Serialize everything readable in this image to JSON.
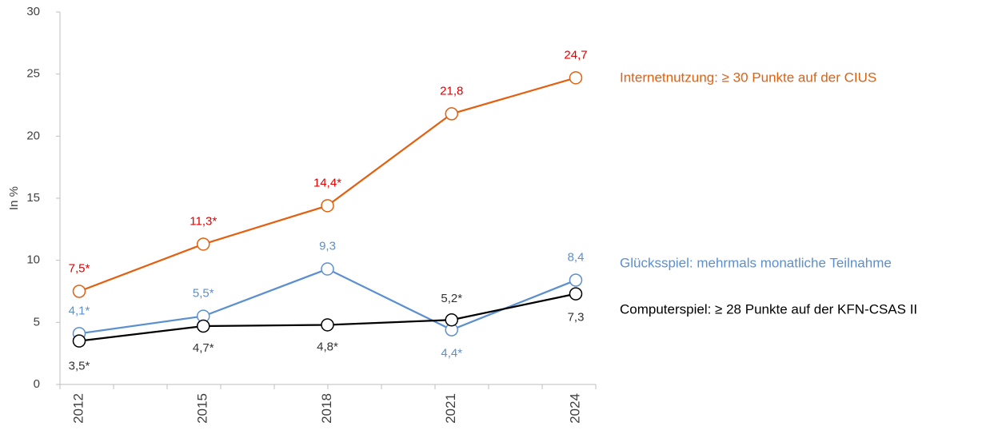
{
  "chart_data": {
    "type": "line",
    "y_label": "In %",
    "categories": [
      "2012",
      "2015",
      "2018",
      "2021",
      "2024"
    ],
    "ylim": [
      0,
      30
    ],
    "yticks": [
      0,
      5,
      10,
      15,
      20,
      25,
      30
    ],
    "grid": false,
    "series": [
      {
        "name": "Internetnutzung: ≥ 30 Punkte auf der CIUS",
        "color": "#e2600f",
        "label_color": "#e00000",
        "values": [
          7.5,
          11.3,
          14.4,
          21.8,
          24.7
        ],
        "value_labels": [
          "7,5*",
          "11,3*",
          "14,4*",
          "21,8",
          "24,7"
        ]
      },
      {
        "name": "Glücksspiel: mehrmals monatliche Teilnahme",
        "color": "#5b8fcf",
        "label_color": "#5b8fcf",
        "values": [
          4.1,
          5.5,
          9.3,
          4.4,
          8.4
        ],
        "value_labels": [
          "4,1*",
          "5,5*",
          "9,3",
          "4,4*",
          "8,4"
        ]
      },
      {
        "name": "Computerspiel: ≥ 28 Punkte auf der KFN-CSAS II",
        "color": "#000000",
        "label_color": "#333333",
        "values": [
          3.5,
          4.7,
          4.8,
          5.2,
          7.3
        ],
        "value_labels": [
          "3,5*",
          "4,7*",
          "4,8*",
          "5,2*",
          "7,3"
        ]
      }
    ]
  }
}
